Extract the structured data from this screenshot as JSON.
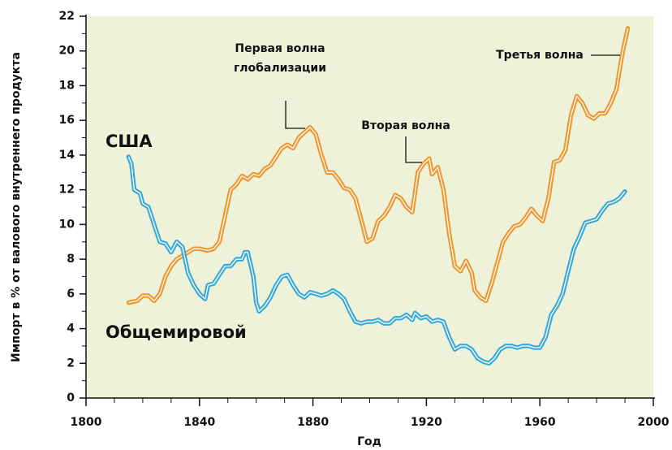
{
  "chart_data": {
    "type": "line",
    "x_label": "Год",
    "y_label": "Импорт в % от валового внутреннего продукта",
    "xlim": [
      1800,
      2000
    ],
    "xticks": [
      1800,
      1840,
      1880,
      1920,
      1960,
      2000
    ],
    "xticks_minor": [
      1810,
      1820,
      1830,
      1850,
      1860,
      1870,
      1890,
      1900,
      1910,
      1930,
      1940,
      1950,
      1970,
      1980,
      1990
    ],
    "ylim": [
      0,
      22
    ],
    "yticks": [
      0,
      2,
      4,
      6,
      8,
      10,
      12,
      14,
      16,
      18,
      20,
      22
    ],
    "yticks_minor": [
      1,
      3,
      5,
      7,
      9,
      11,
      13,
      15,
      17,
      19,
      21
    ],
    "background": "#eef2d9",
    "series": [
      {
        "name": "Общемировой",
        "color": "#f0962e",
        "x": [
          1815,
          1818,
          1820,
          1822,
          1824,
          1826,
          1828,
          1830,
          1832,
          1835,
          1838,
          1840,
          1843,
          1845,
          1847,
          1849,
          1851,
          1853,
          1855,
          1857,
          1859,
          1861,
          1863,
          1865,
          1867,
          1869,
          1871,
          1873,
          1875,
          1877,
          1879,
          1881,
          1883,
          1885,
          1887,
          1889,
          1891,
          1893,
          1895,
          1897,
          1899,
          1901,
          1903,
          1905,
          1907,
          1909,
          1911,
          1913,
          1915,
          1917,
          1919,
          1921,
          1922,
          1924,
          1926,
          1928,
          1930,
          1932,
          1934,
          1936,
          1937,
          1939,
          1941,
          1943,
          1945,
          1947,
          1949,
          1951,
          1953,
          1955,
          1957,
          1959,
          1961,
          1963,
          1965,
          1967,
          1969,
          1971,
          1973,
          1975,
          1977,
          1979,
          1981,
          1983,
          1985,
          1987,
          1989,
          1991
        ],
        "values": [
          5.5,
          5.6,
          5.9,
          5.9,
          5.6,
          6.0,
          7.0,
          7.6,
          8.0,
          8.3,
          8.6,
          8.6,
          8.5,
          8.6,
          9.0,
          10.5,
          12.0,
          12.3,
          12.8,
          12.6,
          12.9,
          12.8,
          13.2,
          13.4,
          13.9,
          14.4,
          14.6,
          14.4,
          15.0,
          15.3,
          15.6,
          15.2,
          14.0,
          13.0,
          13.0,
          12.6,
          12.1,
          12.0,
          11.5,
          10.3,
          9.0,
          9.2,
          10.2,
          10.5,
          11.0,
          11.7,
          11.5,
          11.0,
          10.7,
          13.0,
          13.5,
          13.8,
          12.9,
          13.3,
          12.0,
          9.5,
          7.6,
          7.3,
          7.9,
          7.2,
          6.2,
          5.8,
          5.6,
          6.6,
          7.8,
          9.0,
          9.5,
          9.9,
          10.0,
          10.4,
          10.9,
          10.5,
          10.2,
          11.5,
          13.6,
          13.7,
          14.3,
          16.3,
          17.4,
          17.0,
          16.3,
          16.1,
          16.4,
          16.4,
          17.0,
          17.8,
          19.8,
          21.3
        ]
      },
      {
        "name": "США",
        "color": "#3aa9d9",
        "x": [
          1815,
          1816,
          1817,
          1819,
          1820,
          1822,
          1824,
          1826,
          1828,
          1830,
          1832,
          1834,
          1836,
          1838,
          1840,
          1842,
          1843,
          1845,
          1847,
          1849,
          1851,
          1853,
          1855,
          1856,
          1857,
          1859,
          1860,
          1861,
          1863,
          1865,
          1867,
          1869,
          1871,
          1873,
          1875,
          1877,
          1879,
          1881,
          1883,
          1885,
          1887,
          1889,
          1891,
          1893,
          1895,
          1897,
          1899,
          1901,
          1903,
          1905,
          1907,
          1909,
          1911,
          1913,
          1915,
          1916,
          1918,
          1920,
          1922,
          1924,
          1926,
          1928,
          1930,
          1932,
          1934,
          1936,
          1938,
          1940,
          1942,
          1944,
          1946,
          1948,
          1950,
          1952,
          1954,
          1956,
          1958,
          1960,
          1962,
          1964,
          1966,
          1968,
          1970,
          1972,
          1974,
          1976,
          1978,
          1980,
          1982,
          1984,
          1986,
          1988,
          1990
        ],
        "values": [
          13.9,
          13.5,
          12.0,
          11.8,
          11.2,
          11.0,
          10.0,
          9.0,
          8.9,
          8.4,
          9.0,
          8.7,
          7.2,
          6.5,
          6.0,
          5.7,
          6.5,
          6.6,
          7.1,
          7.6,
          7.6,
          8.0,
          8.0,
          8.4,
          8.4,
          7.0,
          5.5,
          5.0,
          5.3,
          5.8,
          6.5,
          7.0,
          7.1,
          6.5,
          6.0,
          5.8,
          6.1,
          6.0,
          5.9,
          6.0,
          6.2,
          6.0,
          5.7,
          5.0,
          4.4,
          4.3,
          4.4,
          4.4,
          4.5,
          4.3,
          4.3,
          4.6,
          4.6,
          4.8,
          4.5,
          4.9,
          4.6,
          4.7,
          4.4,
          4.5,
          4.4,
          3.5,
          2.8,
          3.0,
          3.0,
          2.8,
          2.3,
          2.1,
          2.0,
          2.3,
          2.8,
          3.0,
          3.0,
          2.9,
          3.0,
          3.0,
          2.9,
          2.9,
          3.5,
          4.8,
          5.3,
          6.0,
          7.3,
          8.6,
          9.3,
          10.1,
          10.2,
          10.3,
          10.8,
          11.2,
          11.3,
          11.5,
          11.9
        ]
      }
    ],
    "annotations": [
      {
        "lines": [
          "Первая волна",
          "глобализации"
        ]
      },
      {
        "lines": [
          "Вторая волна"
        ]
      },
      {
        "lines": [
          "Третья волна"
        ]
      }
    ]
  }
}
